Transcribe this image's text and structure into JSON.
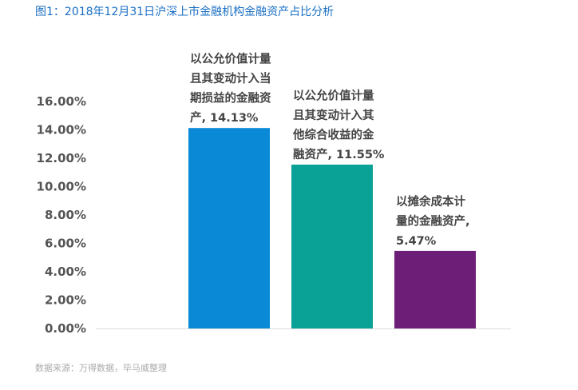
{
  "chart_data": {
    "type": "bar",
    "title": "图1：2018年12月31日沪深上市金融机构金融资产占比分析",
    "source": "数据来源：万得数据，毕马威整理",
    "categories": [
      "以公允价值计量且其变动计入当期损益的金融资产",
      "以公允价值计量且其变动计入其他综合收益的金融资产",
      "以摊余成本计量的金融资产"
    ],
    "values": [
      14.13,
      11.55,
      5.47
    ],
    "data_labels": [
      [
        "以公允价值计量",
        "且其变动计入当",
        "期损益的金融资",
        "产, 14.13%"
      ],
      [
        "以公允价值计量",
        "且其变动计入其",
        "他综合收益的金",
        "融资产, 11.55%"
      ],
      [
        "以摊余成本计",
        "量的金融资产,",
        "5.47%"
      ]
    ],
    "colors": [
      "#0a8ad6",
      "#0aa196",
      "#6d1f78"
    ],
    "ylim": [
      0,
      16
    ],
    "yticks": [
      "0.00%",
      "2.00%",
      "4.00%",
      "6.00%",
      "8.00%",
      "10.00%",
      "12.00%",
      "14.00%",
      "16.00%"
    ],
    "xlabel": "",
    "ylabel": "",
    "grid": false
  }
}
